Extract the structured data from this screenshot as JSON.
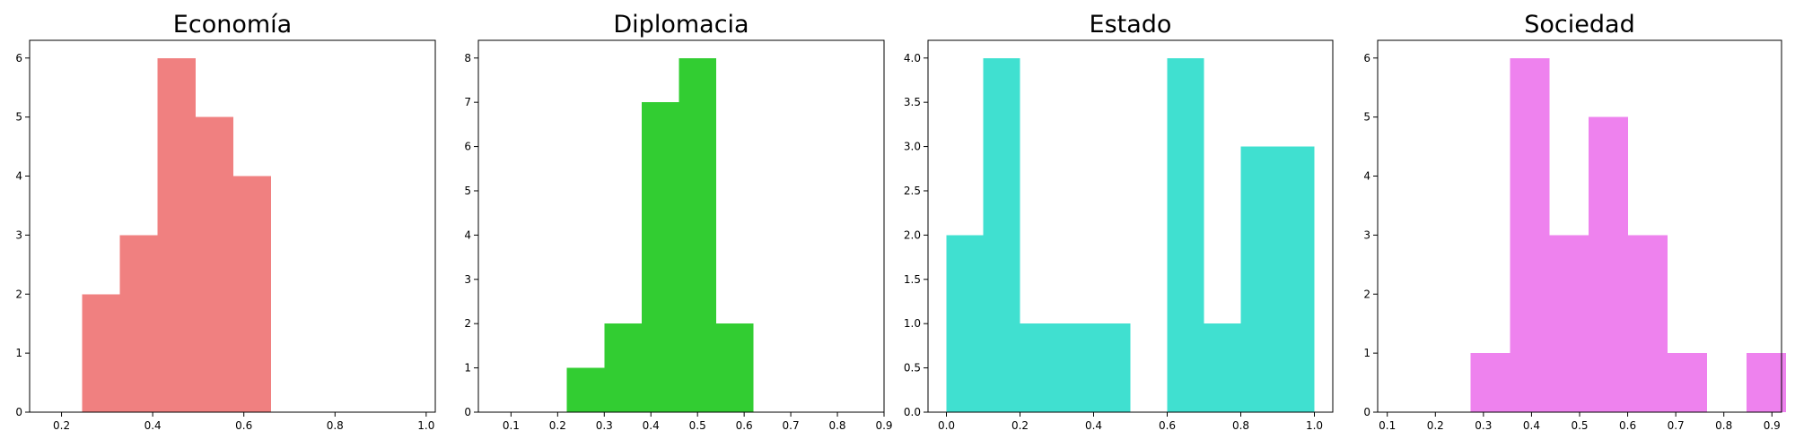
{
  "chart_data": [
    {
      "type": "bar",
      "title": "Economía",
      "color": "#f08080",
      "xlim": [
        0.13,
        1.02
      ],
      "ylim": [
        0,
        6.3
      ],
      "xticks": [
        "0.2",
        "0.4",
        "0.6",
        "0.8",
        "1.0"
      ],
      "yticks": [
        "0",
        "1",
        "2",
        "3",
        "4",
        "5",
        "6"
      ],
      "bins": [
        {
          "x0": 0.245,
          "x1": 0.328,
          "count": 2
        },
        {
          "x0": 0.328,
          "x1": 0.411,
          "count": 3
        },
        {
          "x0": 0.411,
          "x1": 0.494,
          "count": 6
        },
        {
          "x0": 0.494,
          "x1": 0.577,
          "count": 5
        },
        {
          "x0": 0.577,
          "x1": 0.66,
          "count": 4
        }
      ]
    },
    {
      "type": "bar",
      "title": "Diplomacia",
      "color": "#32cd32",
      "xlim": [
        0.03,
        0.9
      ],
      "ylim": [
        0,
        8.4
      ],
      "xticks": [
        "0.1",
        "0.2",
        "0.3",
        "0.4",
        "0.5",
        "0.6",
        "0.7",
        "0.8",
        "0.9"
      ],
      "yticks": [
        "0",
        "1",
        "2",
        "3",
        "4",
        "5",
        "6",
        "7",
        "8"
      ],
      "bins": [
        {
          "x0": 0.22,
          "x1": 0.3,
          "count": 1
        },
        {
          "x0": 0.3,
          "x1": 0.38,
          "count": 2
        },
        {
          "x0": 0.38,
          "x1": 0.46,
          "count": 7
        },
        {
          "x0": 0.46,
          "x1": 0.54,
          "count": 8
        },
        {
          "x0": 0.54,
          "x1": 0.62,
          "count": 2
        }
      ]
    },
    {
      "type": "bar",
      "title": "Estado",
      "color": "#40e0d0",
      "xlim": [
        -0.05,
        1.05
      ],
      "ylim": [
        0,
        4.2
      ],
      "xticks": [
        "0.0",
        "0.2",
        "0.4",
        "0.6",
        "0.8",
        "1.0"
      ],
      "yticks": [
        "0.0",
        "0.5",
        "1.0",
        "1.5",
        "2.0",
        "2.5",
        "3.0",
        "3.5",
        "4.0"
      ],
      "bins": [
        {
          "x0": 0.0,
          "x1": 0.1,
          "count": 2
        },
        {
          "x0": 0.1,
          "x1": 0.2,
          "count": 4
        },
        {
          "x0": 0.2,
          "x1": 0.3,
          "count": 1
        },
        {
          "x0": 0.3,
          "x1": 0.4,
          "count": 1
        },
        {
          "x0": 0.4,
          "x1": 0.5,
          "count": 1
        },
        {
          "x0": 0.5,
          "x1": 0.6,
          "count": 0
        },
        {
          "x0": 0.6,
          "x1": 0.7,
          "count": 4
        },
        {
          "x0": 0.7,
          "x1": 0.8,
          "count": 1
        },
        {
          "x0": 0.8,
          "x1": 0.9,
          "count": 3
        },
        {
          "x0": 0.9,
          "x1": 1.0,
          "count": 3
        }
      ]
    },
    {
      "type": "bar",
      "title": "Sociedad",
      "color": "#ee82ee",
      "xlim": [
        0.08,
        0.92
      ],
      "ylim": [
        0,
        6.3
      ],
      "xticks": [
        "0.1",
        "0.2",
        "0.3",
        "0.4",
        "0.5",
        "0.6",
        "0.7",
        "0.8",
        "0.9"
      ],
      "yticks": [
        "0",
        "1",
        "2",
        "3",
        "4",
        "5",
        "6"
      ],
      "bins": [
        {
          "x0": 0.273,
          "x1": 0.355,
          "count": 1
        },
        {
          "x0": 0.355,
          "x1": 0.437,
          "count": 6
        },
        {
          "x0": 0.437,
          "x1": 0.519,
          "count": 3
        },
        {
          "x0": 0.519,
          "x1": 0.601,
          "count": 5
        },
        {
          "x0": 0.601,
          "x1": 0.683,
          "count": 3
        },
        {
          "x0": 0.683,
          "x1": 0.765,
          "count": 1
        },
        {
          "x0": 0.765,
          "x1": 0.847,
          "count": 0
        },
        {
          "x0": 0.847,
          "x1": 0.929,
          "count": 1
        }
      ]
    }
  ]
}
